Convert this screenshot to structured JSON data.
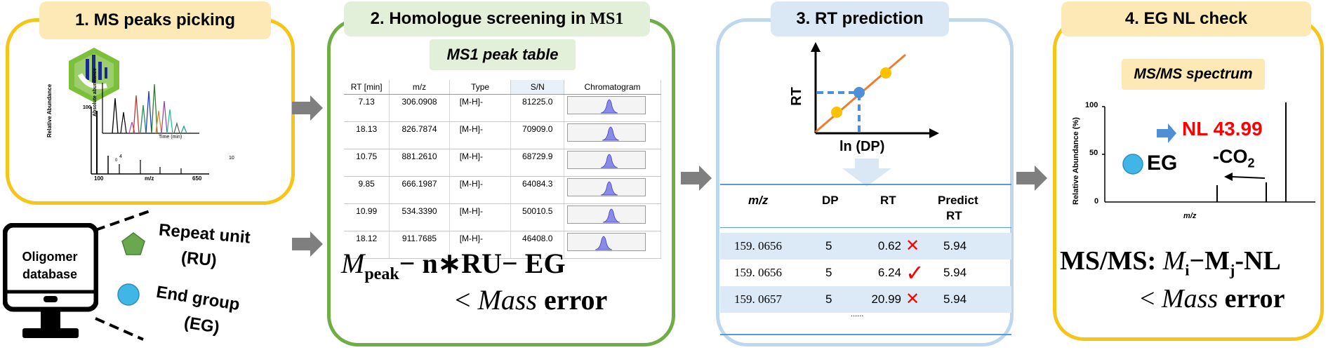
{
  "colors": {
    "panel1_border": "#f5c518",
    "panel2_border": "#70ad47",
    "panel3_border": "#bdd7ee",
    "panel4_border": "#f5c518",
    "tag_yellow": "#fde9b6",
    "tag_green": "#e2f0d9",
    "tag_blue": "#dae8f5",
    "ru_pentagon": "#6aa84f",
    "eg_circle": "#3fb6e6",
    "fit_line": "#ed7d31",
    "point": "#ffc000",
    "dashed": "#4f8fd6",
    "row_shade": "#dce9f6",
    "cross": "#ff0000",
    "nl_red": "#ff0000",
    "peak_fill": "#5b5bd6"
  },
  "panel1": {
    "title": "1. MS peaks picking",
    "y_axis_inner": "Absolute abundance",
    "y_axis_outer": "Relative Abundance",
    "x_axis_inner": "Time (min)",
    "x_axis_outer": "m/z",
    "tick_100_top": "100",
    "tick_100_left": "100",
    "tick_650": "650",
    "tick_4": "4",
    "tick_10": "10",
    "tick_0": "0"
  },
  "database": {
    "label_line1": "Oligomer",
    "label_line2": "database",
    "ru_line1": "Repeat unit",
    "ru_line2": "(RU)",
    "eg_line1": "End group",
    "eg_line2": "(EG)"
  },
  "panel2": {
    "title_prefix": "2. Homologue screening in ",
    "title_suffix": "MS1",
    "subtitle": "MS1 peak table",
    "columns": [
      "RT [min]",
      "m/z",
      "Type",
      "S/N",
      "Chromatogram"
    ],
    "rows": [
      {
        "rt": "7.13",
        "mz": "306.0908",
        "type": "[M-H]-",
        "sn": "81225.0"
      },
      {
        "rt": "18.13",
        "mz": "826.7874",
        "type": "[M-H]-",
        "sn": "70909.0"
      },
      {
        "rt": "10.75",
        "mz": "881.2610",
        "type": "[M-H]-",
        "sn": "68729.9"
      },
      {
        "rt": "9.85",
        "mz": "666.1987",
        "type": "[M-H]-",
        "sn": "64084.3"
      },
      {
        "rt": "10.99",
        "mz": "534.3390",
        "type": "[M-H]-",
        "sn": "50010.5"
      },
      {
        "rt": "18.12",
        "mz": "911.7685",
        "type": "[M-H]-",
        "sn": "46408.0"
      }
    ],
    "formula_M": "M",
    "formula_sub": "peak",
    "formula_rest": "− n∗RU− EG",
    "formula_line2_lt": "< ",
    "formula_line2_mass": "Mass",
    "formula_line2_error": " error"
  },
  "panel3": {
    "title": "3. RT prediction",
    "y_label": "RT",
    "x_label": "ln (DP)",
    "headers": [
      "m/z",
      "DP",
      "RT",
      "Predict",
      "RT"
    ],
    "rows": [
      {
        "mz": "159. 0656",
        "dp": "5",
        "rt": "0.62",
        "mark": "✕",
        "pred": "5.94"
      },
      {
        "mz": "159. 0656",
        "dp": "5",
        "rt": "6.24",
        "mark": "✓",
        "pred": "5.94"
      },
      {
        "mz": "159. 0657",
        "dp": "5",
        "rt": "20.99",
        "mark": "✕",
        "pred": "5.94"
      }
    ],
    "ellipsis": "......"
  },
  "panel4": {
    "title": "4. EG NL check",
    "subtitle": "MS/MS spectrum",
    "y_label": "Relative Abundance (%)",
    "tick_100": "100",
    "tick_50": "50",
    "tick_0": "0",
    "x_label": "m/z",
    "nl_label": "NL 43.99",
    "co2_prefix": "-CO",
    "co2_sub": "2",
    "eg_label": "EG",
    "formula_prefix": "MS/MS: ",
    "formula_Mi": "M",
    "formula_i": "i",
    "formula_dash": "−M",
    "formula_j": "j",
    "formula_nl": "-NL",
    "formula_line2_lt": "< ",
    "formula_line2_mass": "Mass",
    "formula_line2_error": " error"
  }
}
